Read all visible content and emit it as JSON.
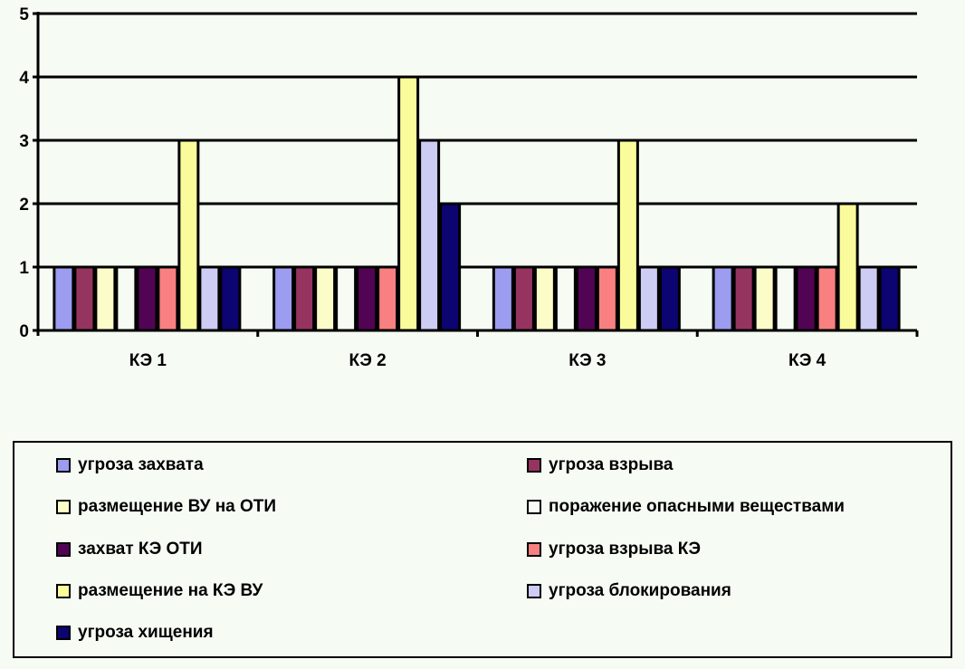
{
  "chart_data": {
    "type": "bar",
    "categories": [
      "КЭ 1",
      "КЭ 2",
      "КЭ 3",
      "КЭ 4"
    ],
    "ylim": [
      0,
      5
    ],
    "yticks": [
      "0",
      "1",
      "2",
      "3",
      "4",
      "5"
    ],
    "grid": true,
    "legend_position": "bottom",
    "series": [
      {
        "name": "угроза захвата",
        "color": "#9c9cf0",
        "values": [
          1,
          1,
          1,
          1
        ]
      },
      {
        "name": "угроза взрыва",
        "color": "#963460",
        "values": [
          1,
          1,
          1,
          1
        ]
      },
      {
        "name": "размещение ВУ на ОТИ",
        "color": "#fcfcc8",
        "values": [
          1,
          1,
          1,
          1
        ]
      },
      {
        "name": "поражение опасными веществами",
        "color": "#f6fcf4",
        "values": [
          1,
          1,
          1,
          1
        ]
      },
      {
        "name": "захват КЭ ОТИ",
        "color": "#520454",
        "values": [
          1,
          1,
          1,
          1
        ]
      },
      {
        "name": "угроза взрыва КЭ",
        "color": "#f88080",
        "values": [
          1,
          1,
          1,
          1
        ]
      },
      {
        "name": "размещение на КЭ ВУ",
        "color": "#fafc9c",
        "values": [
          3,
          4,
          3,
          2
        ]
      },
      {
        "name": "угроза блокирования",
        "color": "#ccccf4",
        "values": [
          1,
          3,
          1,
          1
        ]
      },
      {
        "name": "угроза хищения",
        "color": "#0c0470",
        "values": [
          1,
          2,
          1,
          1
        ]
      }
    ]
  }
}
